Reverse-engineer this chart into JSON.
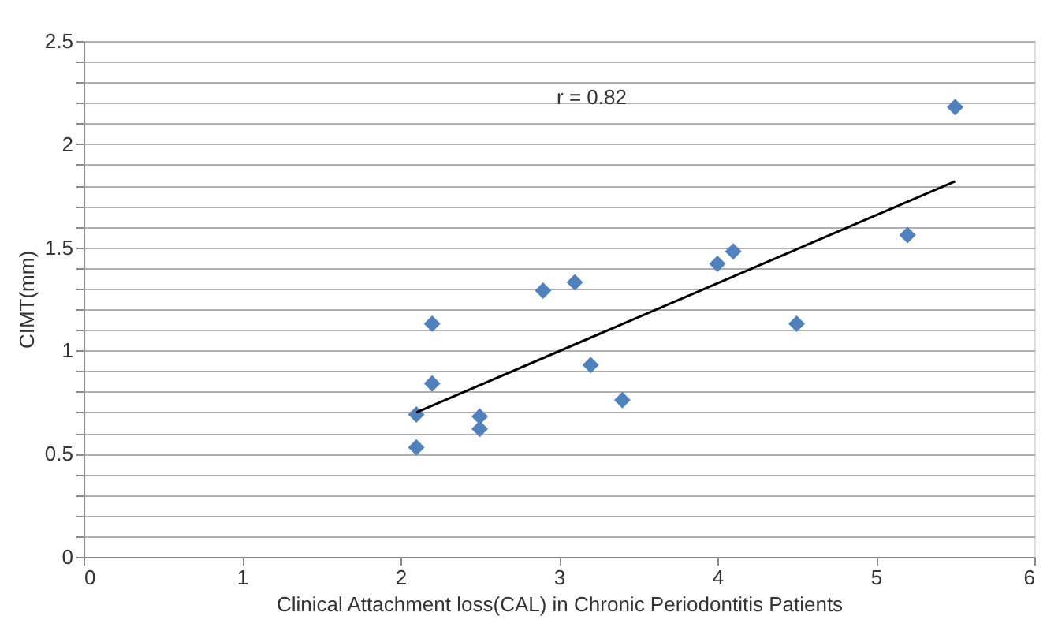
{
  "chart_data": {
    "type": "scatter",
    "xlabel": "Clinical Attachment loss(CAL) in Chronic Periodontitis Patients",
    "ylabel": "CIMT(mm)",
    "annotations": [
      "r = 0.82"
    ],
    "xlim": [
      0,
      6
    ],
    "xticks": [
      0,
      1,
      2,
      3,
      4,
      5,
      6
    ],
    "ylim": [
      0,
      2.5
    ],
    "yticks": [
      0,
      {
        "value": 0.1,
        "label": null
      },
      {
        "value": 0.2,
        "label": null
      },
      {
        "value": 0.3,
        "label": null
      },
      {
        "value": 0.4,
        "label": null
      },
      0.5,
      {
        "value": 0.6,
        "label": null
      },
      {
        "value": 0.7,
        "label": null
      },
      {
        "value": 0.8,
        "label": null
      },
      {
        "value": 0.9,
        "label": null
      },
      1,
      {
        "value": 1.1,
        "label": null
      },
      {
        "value": 1.2,
        "label": null
      },
      {
        "value": 1.3,
        "label": null
      },
      {
        "value": 1.4,
        "label": null
      },
      1.5,
      {
        "value": 1.6,
        "label": null
      },
      {
        "value": 1.7,
        "label": null
      },
      {
        "value": 1.8,
        "label": null
      },
      {
        "value": 1.9,
        "label": null
      },
      2,
      {
        "value": 2.1,
        "label": null
      },
      {
        "value": 2.2,
        "label": null
      },
      {
        "value": 2.3,
        "label": null
      },
      {
        "value": 2.4,
        "label": null
      },
      2.5
    ],
    "grid": "y",
    "marker": "diamond",
    "series": [
      {
        "color": "#4f81bd",
        "x": [
          2.1,
          2.1,
          2.2,
          2.2,
          2.5,
          2.5,
          2.9,
          3.1,
          3.2,
          3.4,
          4.0,
          4.1,
          4.5,
          5.2,
          5.5
        ],
        "values": [
          0.53,
          0.69,
          1.13,
          0.84,
          0.68,
          0.62,
          1.29,
          1.33,
          0.93,
          0.76,
          1.42,
          1.48,
          1.13,
          1.56,
          2.18
        ]
      },
      {
        "type": "line",
        "color": "#000000",
        "marker": "none",
        "x": [
          2.1,
          5.5
        ],
        "values": [
          0.7,
          1.82
        ]
      }
    ]
  }
}
